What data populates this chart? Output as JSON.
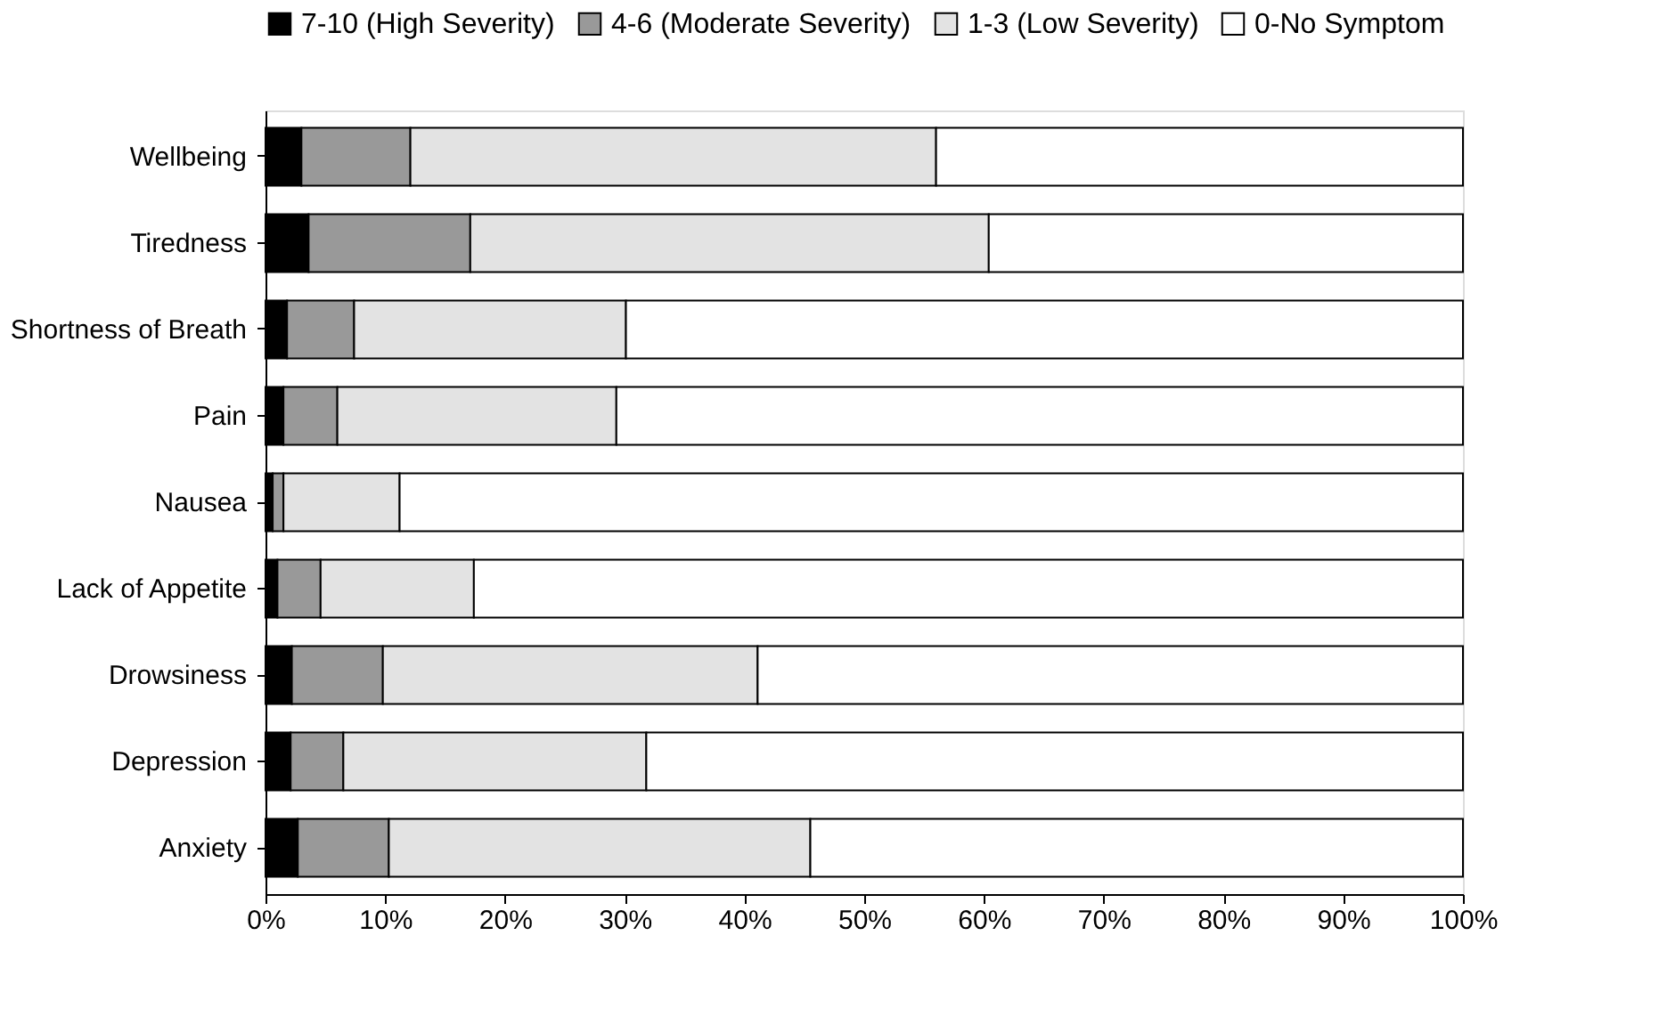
{
  "chart_data": {
    "type": "bar",
    "orientation": "horizontal",
    "stacked": true,
    "categories": [
      "Wellbeing",
      "Tiredness",
      "Shortness of Breath",
      "Pain",
      "Nausea",
      "Lack of Appetite",
      "Drowsiness",
      "Depression",
      "Anxiety"
    ],
    "series": [
      {
        "name": "7-10 (High Severity)",
        "color": "#000000",
        "values": [
          3.0,
          3.6,
          1.8,
          1.5,
          0.6,
          1.0,
          2.2,
          2.1,
          2.7
        ]
      },
      {
        "name": "4-6 (Moderate Severity)",
        "color": "#999999",
        "values": [
          9.1,
          13.5,
          5.6,
          4.5,
          0.9,
          3.6,
          7.6,
          4.4,
          7.6
        ]
      },
      {
        "name": "1-3 (Low Severity)",
        "color": "#e3e3e3",
        "values": [
          43.9,
          43.3,
          22.7,
          23.3,
          9.7,
          12.8,
          31.3,
          25.3,
          35.2
        ]
      },
      {
        "name": "0-No Symptom",
        "color": "#ffffff",
        "values": [
          44.0,
          39.6,
          69.9,
          70.7,
          88.8,
          82.6,
          58.9,
          68.2,
          54.5
        ]
      }
    ],
    "xlim": [
      0,
      100
    ],
    "xticks": [
      {
        "value": 0,
        "label": "0%"
      },
      {
        "value": 10,
        "label": "10%"
      },
      {
        "value": 20,
        "label": "20%"
      },
      {
        "value": 30,
        "label": "30%"
      },
      {
        "value": 40,
        "label": "40%"
      },
      {
        "value": 50,
        "label": "50%"
      },
      {
        "value": 60,
        "label": "60%"
      },
      {
        "value": 70,
        "label": "70%"
      },
      {
        "value": 80,
        "label": "80%"
      },
      {
        "value": 90,
        "label": "90%"
      },
      {
        "value": 100,
        "label": "100%"
      }
    ],
    "grid": false,
    "legend": "top"
  }
}
